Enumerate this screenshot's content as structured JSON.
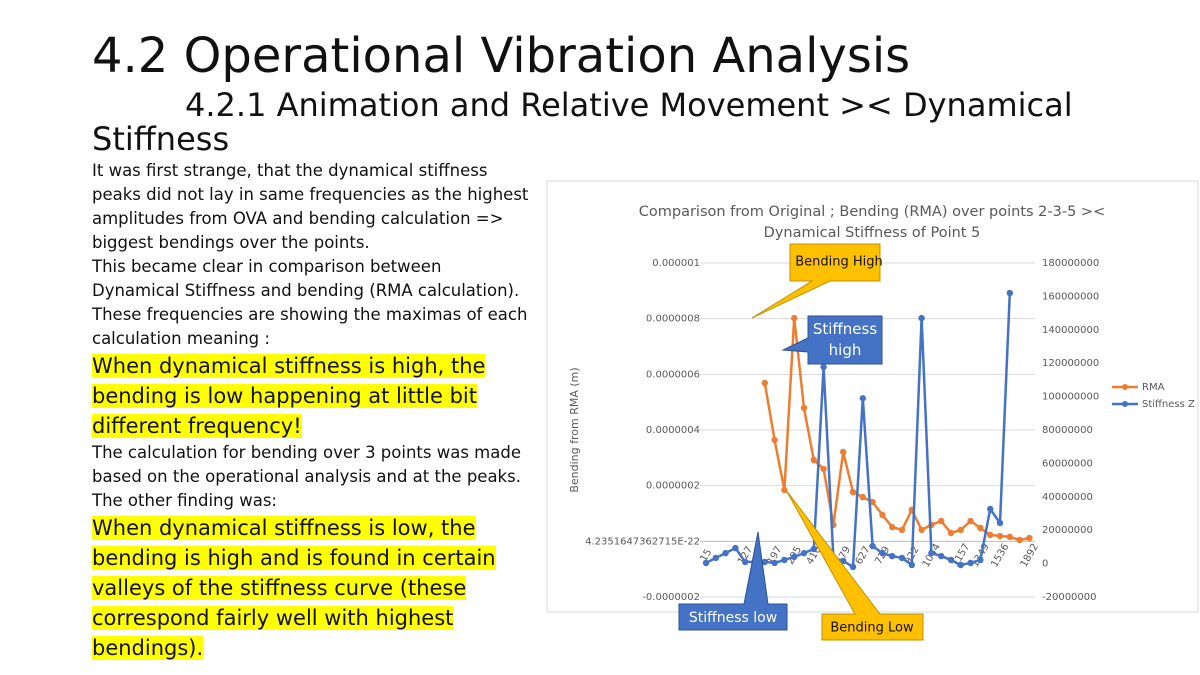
{
  "header": {
    "title": "4.2 Operational Vibration Analysis",
    "subtitle": "4.2.1  Animation and Relative Movement >< Dynamical Stiffness"
  },
  "body": [
    {
      "text": "It was first strange, that the dynamical stiffness peaks did not lay in same frequencies as the highest amplitudes from OVA and bending calculation => biggest bendings over the points.",
      "highlight": false
    },
    {
      "text": "This became clear in comparison between Dynamical Stiffness and bending (RMA calculation).",
      "highlight": false
    },
    {
      "text": "These frequencies are showing the maximas of each calculation meaning :",
      "highlight": false
    },
    {
      "text": "When dynamical stiffness is high, the bending is low happening at little bit different frequency!",
      "highlight": true
    },
    {
      "text": "The calculation for bending over 3 points was made based on the operational analysis and at the peaks. The other finding was:",
      "highlight": false
    },
    {
      "text": "When dynamical stiffness is low, the bending is high and is found in certain valleys of the stiffness curve (these correspond fairly well with highest bendings).",
      "highlight": true
    }
  ],
  "chart_data": {
    "type": "line",
    "title": "Comparison from Original ; Bending (RMA) over points 2-3-5 >< Dynamical Stiffness of Point 5",
    "y_label": "Bending from RMA (m)",
    "categories": [
      "15",
      null,
      null,
      null,
      "127",
      null,
      null,
      "197",
      null,
      "295",
      null,
      "410",
      null,
      null,
      "579",
      null,
      "627",
      null,
      "729",
      null,
      null,
      "922",
      null,
      "1044",
      null,
      null,
      "1157",
      null,
      "1349",
      null,
      "1536",
      null,
      null,
      "1892"
    ],
    "series": [
      {
        "name": "RMA",
        "color": "#ed7d31",
        "axis": "y",
        "values": [
          null,
          null,
          null,
          null,
          null,
          null,
          5.69e-07,
          3.64e-07,
          1.84e-07,
          8.02e-07,
          4.79e-07,
          2.92e-07,
          2.6e-07,
          5.9e-08,
          3.21e-07,
          1.77e-07,
          1.59e-07,
          1.41e-07,
          9.5e-08,
          5.1e-08,
          4.1e-08,
          1.13e-07,
          4.1e-08,
          5.9e-08,
          7.3e-08,
          3e-08,
          4.1e-08,
          7.3e-08,
          4.8e-08,
          2.3e-08,
          1.9e-08,
          1.6e-08,
          5e-09,
          1.2e-08
        ]
      },
      {
        "name": "Stiffness Z",
        "color": "#4472c4",
        "axis": "y2",
        "values": [
          400000,
          3400000,
          6300000,
          9300000,
          1000000,
          1000000,
          1000000,
          400000,
          2200000,
          4000000,
          6300000,
          8700000,
          117700000,
          3400000,
          1600000,
          -2000000,
          99000000,
          10500000,
          6300000,
          4500000,
          3400000,
          -800000,
          147000000,
          6300000,
          4500000,
          2200000,
          -800000,
          400000,
          2200000,
          32700000,
          24300000,
          162000000,
          null,
          null
        ]
      }
    ],
    "ylim": [
      -2e-07,
      1e-06
    ],
    "yticks": [
      {
        "value": -2e-07,
        "label": "-0.0000002"
      },
      {
        "value": 4.2351647362715e-22,
        "label": "4.2351647362715E-22"
      },
      {
        "value": 2e-07,
        "label": "0.0000002"
      },
      {
        "value": 4e-07,
        "label": "0.0000004"
      },
      {
        "value": 6e-07,
        "label": "0.0000006"
      },
      {
        "value": 8e-07,
        "label": "0.0000008"
      },
      1e-06
    ],
    "y2lim": [
      -20000000,
      180000000
    ],
    "y2ticks": [
      -20000000,
      0,
      20000000,
      40000000,
      60000000,
      80000000,
      100000000,
      120000000,
      140000000,
      160000000,
      180000000
    ],
    "grid": true,
    "legend": "right",
    "annotations": [
      "Bending High",
      "Stiffness high",
      "Stiffness low",
      "Bending Low"
    ]
  }
}
